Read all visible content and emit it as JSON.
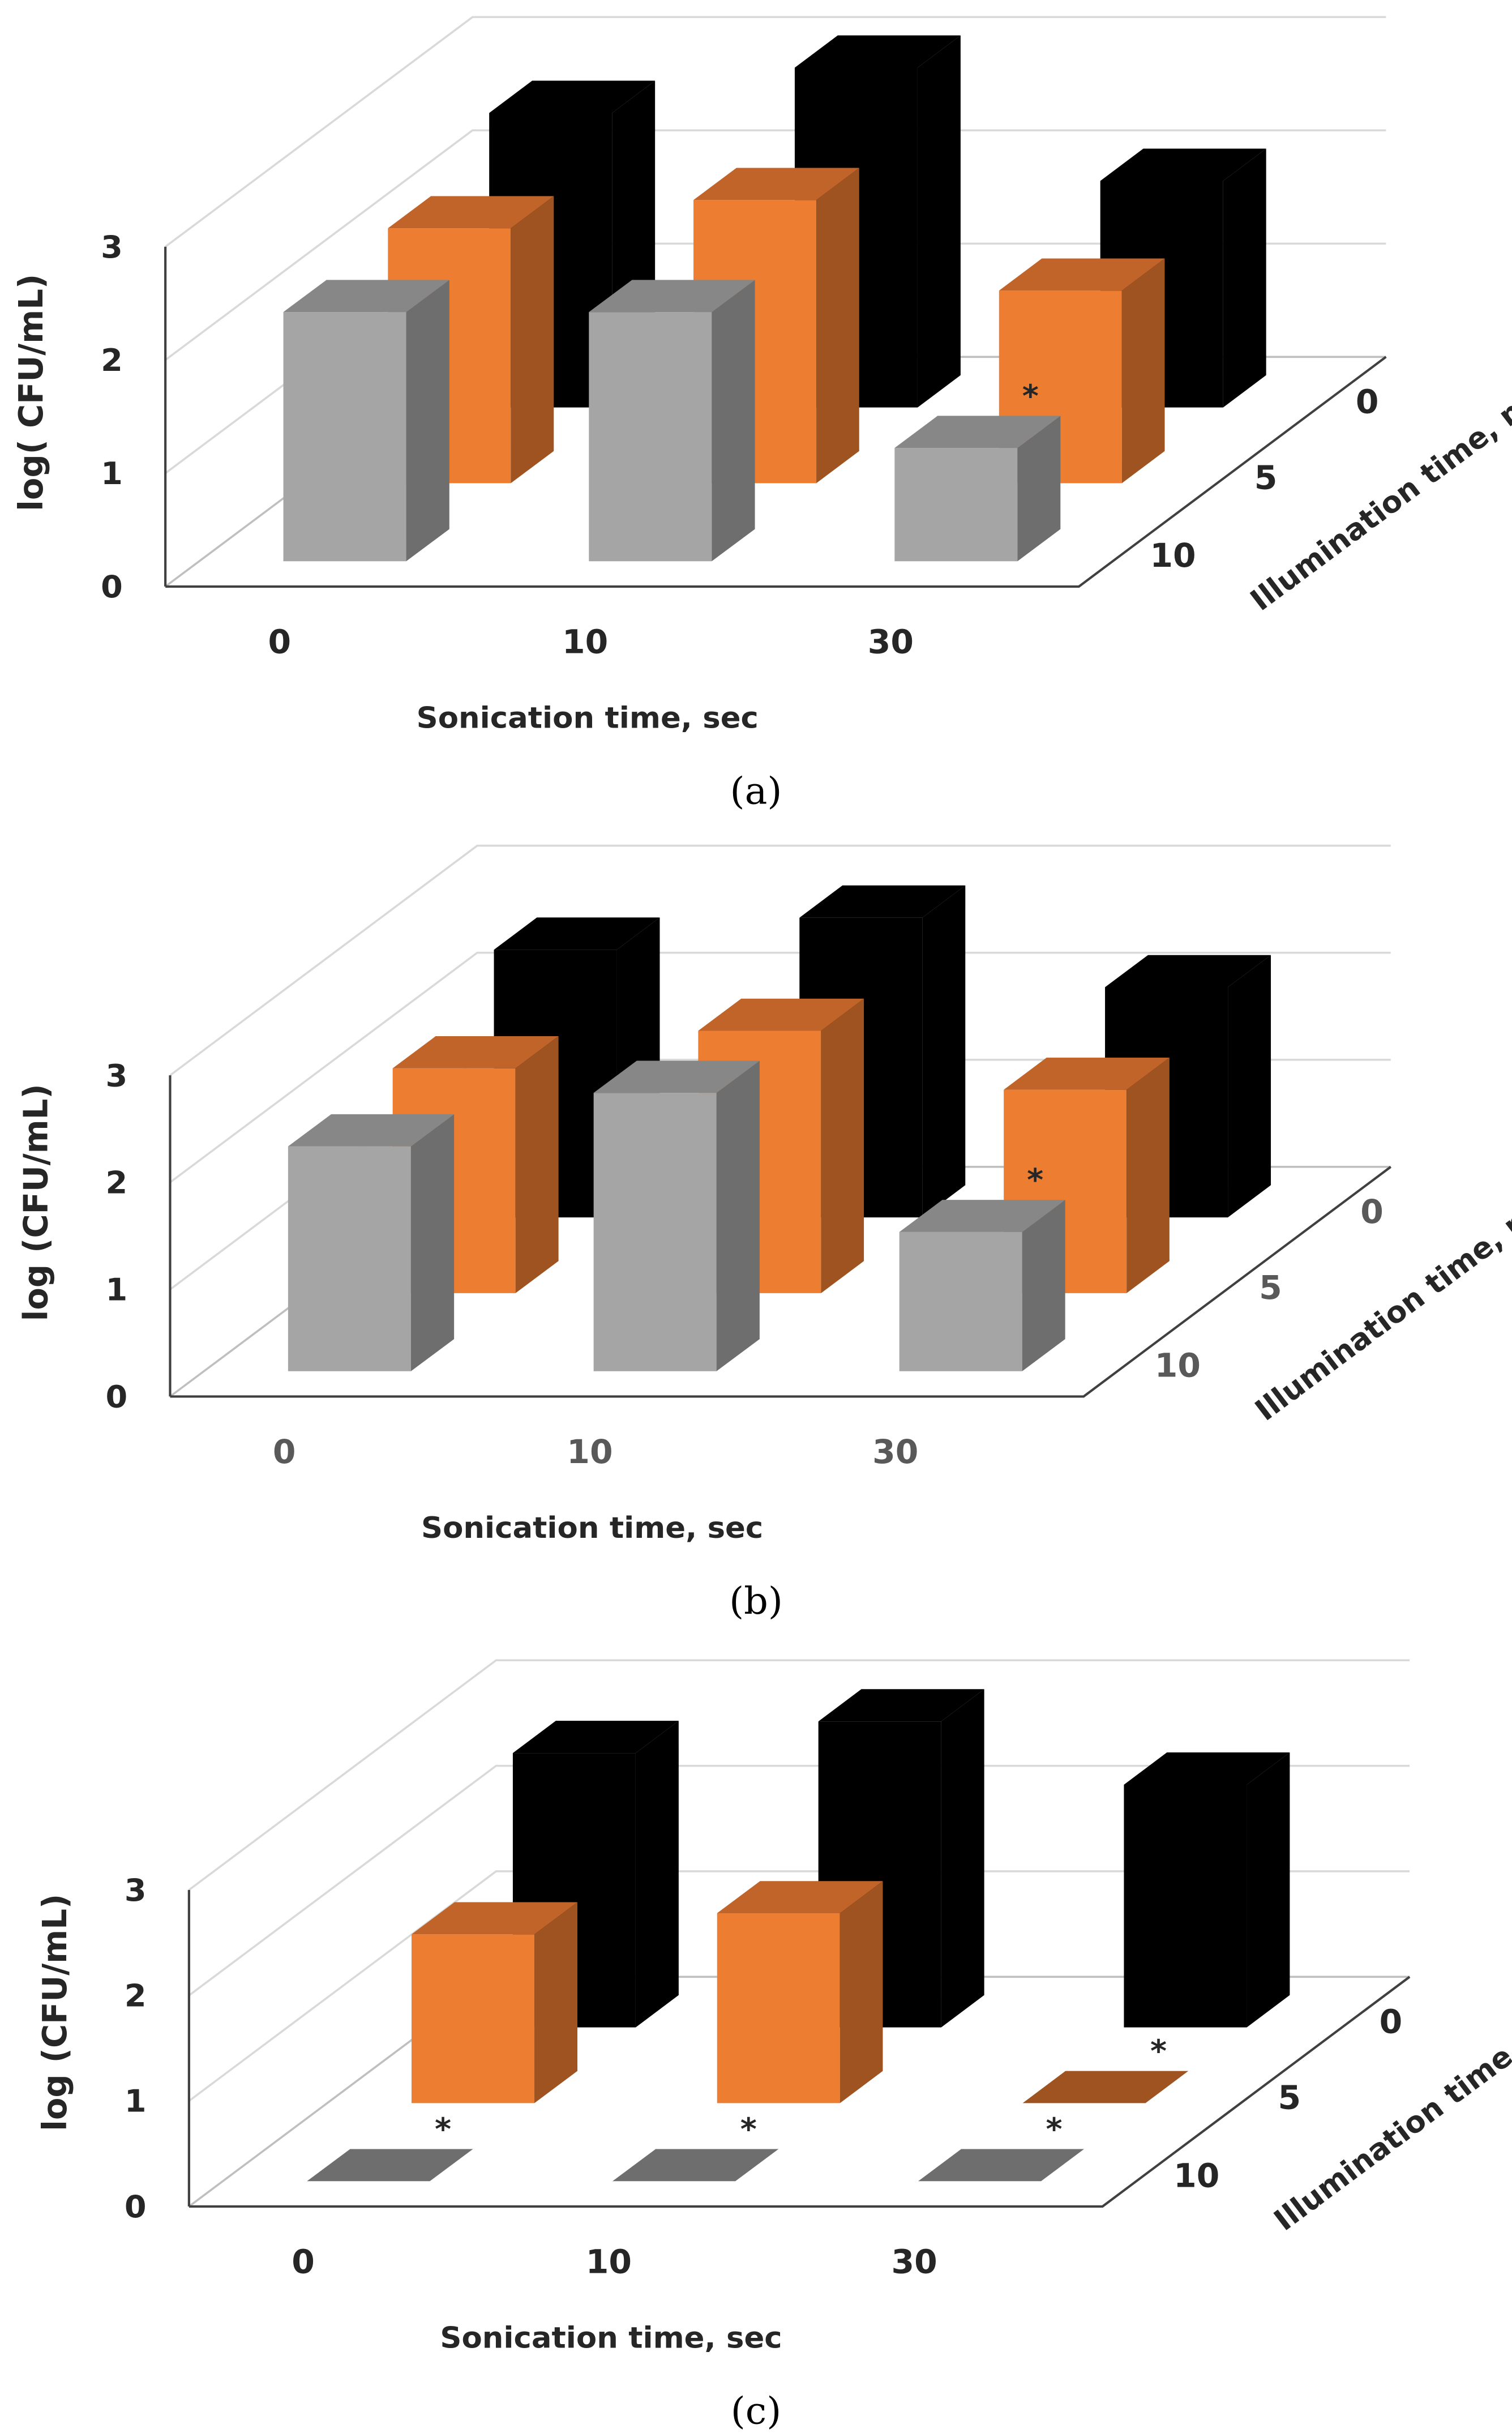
{
  "chart_data": [
    {
      "type": "bar",
      "panel": "(a)",
      "title": "",
      "ylabel": "log( CFU/mL)",
      "xlabel": "Sonication time, sec",
      "zlabel": "Illumination time, min",
      "categories": [
        "0",
        "10",
        "30"
      ],
      "yticks": [
        "0",
        "1",
        "2",
        "3"
      ],
      "ylim": [
        0,
        3
      ],
      "series": [
        {
          "name": "0",
          "color": "#000000",
          "values": [
            2.6,
            3.0,
            2.0
          ],
          "significant": [
            false,
            false,
            false
          ]
        },
        {
          "name": "5",
          "color": "#ed7d31",
          "values": [
            2.25,
            2.5,
            1.7
          ],
          "significant": [
            false,
            false,
            false
          ]
        },
        {
          "name": "10",
          "color": "#a5a5a5",
          "values": [
            2.2,
            2.2,
            1.0
          ],
          "significant": [
            false,
            false,
            true
          ]
        }
      ],
      "annotation": "*"
    },
    {
      "type": "bar",
      "panel": "(b)",
      "title": "",
      "ylabel": "log (CFU/mL)",
      "xlabel": "Sonication time, sec",
      "zlabel": "Illumination time, min",
      "categories": [
        "0",
        "10",
        "30"
      ],
      "yticks": [
        "0",
        "1",
        "2",
        "3"
      ],
      "ylim": [
        0,
        3
      ],
      "series": [
        {
          "name": "0",
          "color": "#000000",
          "values": [
            2.5,
            2.8,
            2.15
          ],
          "significant": [
            false,
            false,
            false
          ]
        },
        {
          "name": "5",
          "color": "#ed7d31",
          "values": [
            2.1,
            2.45,
            1.9
          ],
          "significant": [
            false,
            false,
            false
          ]
        },
        {
          "name": "10",
          "color": "#a5a5a5",
          "values": [
            2.1,
            2.6,
            1.3
          ],
          "significant": [
            false,
            false,
            true
          ]
        }
      ],
      "annotation": "*"
    },
    {
      "type": "bar",
      "panel": "(c)",
      "title": "",
      "ylabel": "log (CFU/mL)",
      "xlabel": "Sonication time, sec",
      "zlabel": "Illumination time, min",
      "categories": [
        "0",
        "10",
        "30"
      ],
      "yticks": [
        "0",
        "1",
        "2",
        "3"
      ],
      "ylim": [
        0,
        3
      ],
      "series": [
        {
          "name": "0",
          "color": "#000000",
          "values": [
            2.6,
            2.9,
            2.3
          ],
          "significant": [
            false,
            false,
            false
          ]
        },
        {
          "name": "5",
          "color": "#ed7d31",
          "values": [
            1.6,
            1.8,
            0
          ],
          "significant": [
            false,
            false,
            true
          ]
        },
        {
          "name": "10",
          "color": "#a5a5a5",
          "values": [
            0,
            0,
            0
          ],
          "significant": [
            true,
            true,
            true
          ]
        }
      ],
      "annotation": "*"
    }
  ]
}
